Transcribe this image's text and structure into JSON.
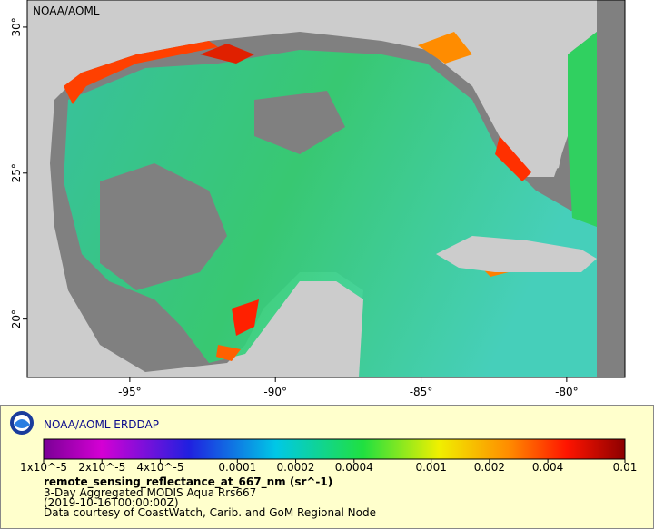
{
  "map": {
    "watermark": "NOAA/AOML",
    "lon_range": [
      -98.52,
      -78.0
    ],
    "lat_range": [
      18.0,
      30.93
    ],
    "lon_ticks": [
      {
        "value": -95,
        "label": "-95°"
      },
      {
        "value": -90,
        "label": "-90°"
      },
      {
        "value": -85,
        "label": "-85°"
      },
      {
        "value": -80,
        "label": "-80°"
      }
    ],
    "lat_ticks": [
      {
        "value": 30,
        "label": "30°"
      },
      {
        "value": 25,
        "label": "25°"
      },
      {
        "value": 20,
        "label": "20°"
      }
    ]
  },
  "legend": {
    "title": "NOAA/AOML ERDDAP",
    "colorbar": {
      "range": [
        1e-05,
        0.01
      ],
      "scale": "log",
      "ticks": [
        {
          "value": 1e-05,
          "label": "1x10^-5"
        },
        {
          "value": 2e-05,
          "label": "2x10^-5"
        },
        {
          "value": 4e-05,
          "label": "4x10^-5"
        },
        0.0001,
        0.0002,
        0.0004,
        0.001,
        0.002,
        0.004,
        0.01
      ]
    },
    "variable": "remote_sensing_reflectance_at_667_nm (sr^-1)",
    "lines": [
      "3-Day Aggregated MODIS Aqua Rrs667",
      "(2019-10-16T00:00:00Z)",
      "Data courtesy of CoastWatch, Carib. and GoM Regional Node"
    ]
  }
}
